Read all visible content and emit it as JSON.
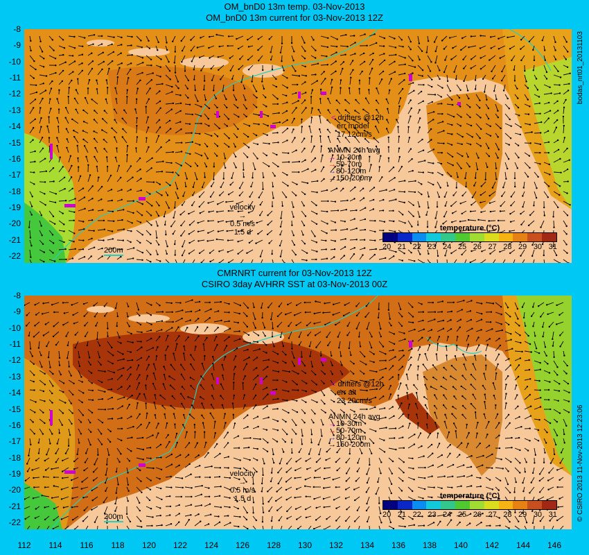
{
  "colors": {
    "background": "#00c8f5",
    "land": "#f7c89a",
    "isobath": "#20d0c0",
    "warm_sea": "#e08a15",
    "hot_sea": "#b43a08",
    "cool_sea": "#8ee23a"
  },
  "top_panel": {
    "title_line1": "OM_bnD0 13m temp. 03-Nov-2013",
    "title_line2": "OM_bnD0 13m current for 03-Nov-2013 12Z",
    "side_label": "bodas_nrt01_20131103",
    "drifters_label": "drifters @12h",
    "err_label": "err model",
    "err_value": "17 12cm/s",
    "isobath_label": "200m"
  },
  "bottom_panel": {
    "title_line1": "CMRNRT current for 03-Nov-2013 12Z",
    "title_line2": "CSIRO 3day AVHRR SST at 03-Nov-2013 00Z",
    "side_label": "© CSIRO 2013   11-Nov-2013 12:23:06",
    "drifters_label": "drifters @12h",
    "err_label": "err alt",
    "err_value": "23 20cm/s",
    "isobath_label": "200m"
  },
  "anmn_legend": {
    "title": "ANMN 24h avg",
    "items": [
      {
        "label": "10-30m",
        "color": "#ff00ff"
      },
      {
        "label": "50-70m",
        "color": "#ff2020"
      },
      {
        "label": "80-120m",
        "color": "#2040ff"
      },
      {
        "label": "150-200m",
        "color": "#000000"
      }
    ]
  },
  "velocity_key": {
    "title": "velocity",
    "speed": "0.5 m/s",
    "duration": "1.5 d"
  },
  "colorbar": {
    "title": "temperature (°C)",
    "ticks": [
      "20",
      "21",
      "22",
      "23",
      "24",
      "25",
      "26",
      "27",
      "28",
      "29",
      "30",
      "31"
    ],
    "colors": [
      "#000080",
      "#0a28c8",
      "#0a8cf0",
      "#14c8dc",
      "#32c88c",
      "#50c832",
      "#a0dc32",
      "#dcdc1e",
      "#f5b414",
      "#e68214",
      "#c8501e",
      "#a02814"
    ]
  },
  "axes": {
    "x_ticks": [
      "112",
      "114",
      "116",
      "118",
      "120",
      "122",
      "124",
      "126",
      "128",
      "130",
      "132",
      "134",
      "136",
      "138",
      "140",
      "142",
      "144",
      "146"
    ],
    "y_ticks": [
      "-8",
      "-9",
      "-10",
      "-11",
      "-12",
      "-13",
      "-14",
      "-15",
      "-16",
      "-17",
      "-18",
      "-19",
      "-20",
      "-21",
      "-22"
    ]
  }
}
